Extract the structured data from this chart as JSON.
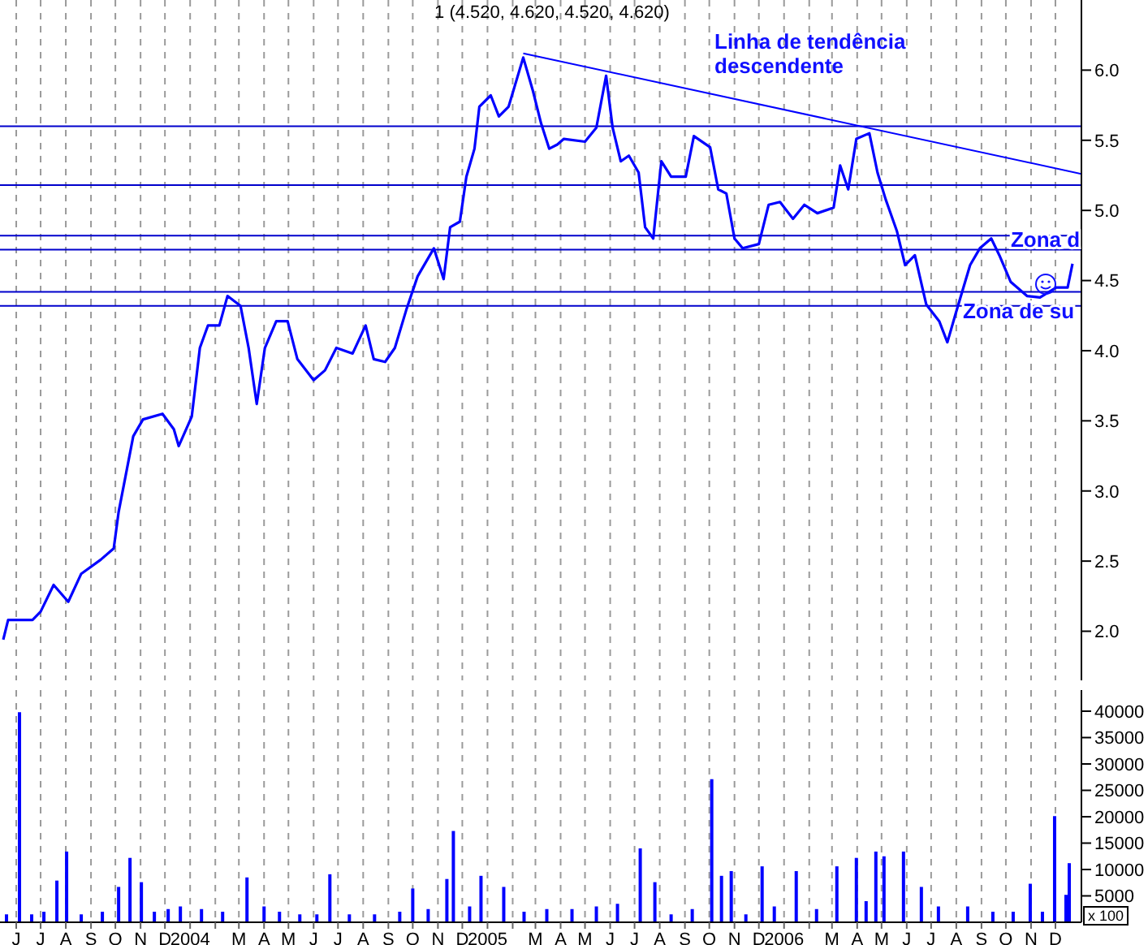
{
  "chart_data": [
    {
      "type": "line",
      "title": "1 (4.520, 4.620, 4.520, 4.620)",
      "x": [
        "2003-05-16",
        "2003-05-22",
        "2003-06-21",
        "2003-07-01",
        "2003-07-17",
        "2003-08-04",
        "2003-08-20",
        "2003-09-13",
        "2003-09-29",
        "2003-10-05",
        "2003-10-15",
        "2003-10-23",
        "2003-11-04",
        "2003-11-28",
        "2003-12-12",
        "2003-12-18",
        "2004-01-03",
        "2004-01-13",
        "2004-01-23",
        "2004-02-06",
        "2004-02-16",
        "2004-03-03",
        "2004-03-13",
        "2004-03-23",
        "2004-04-02",
        "2004-04-16",
        "2004-04-30",
        "2004-05-12",
        "2004-06-01",
        "2004-06-15",
        "2004-06-29",
        "2004-07-19",
        "2004-08-04",
        "2004-08-14",
        "2004-08-28",
        "2004-09-09",
        "2004-09-23",
        "2004-10-07",
        "2004-10-27",
        "2004-11-08",
        "2004-11-16",
        "2004-11-28",
        "2004-12-06",
        "2004-12-16",
        "2004-12-22",
        "2005-01-05",
        "2005-01-15",
        "2005-01-27",
        "2005-02-14",
        "2005-02-26",
        "2005-03-08",
        "2005-03-18",
        "2005-03-28",
        "2005-04-05",
        "2005-05-01",
        "2005-05-15",
        "2005-05-27",
        "2005-06-04",
        "2005-06-14",
        "2005-06-24",
        "2005-07-06",
        "2005-07-14",
        "2005-07-24",
        "2005-08-03",
        "2005-08-15",
        "2005-09-02",
        "2005-09-12",
        "2005-10-02",
        "2005-10-12",
        "2005-10-22",
        "2005-11-01",
        "2005-11-11",
        "2005-12-01",
        "2005-12-13",
        "2005-12-27",
        "2006-01-12",
        "2006-01-26",
        "2006-02-11",
        "2006-03-03",
        "2006-03-11",
        "2006-03-21",
        "2006-03-31",
        "2006-04-16",
        "2006-04-26",
        "2006-05-06",
        "2006-05-20",
        "2006-05-30",
        "2006-06-11",
        "2006-06-25",
        "2006-07-11",
        "2006-07-21",
        "2006-07-31",
        "2006-08-18",
        "2006-08-30",
        "2006-09-13",
        "2006-09-23",
        "2006-10-07",
        "2006-10-27",
        "2006-11-12",
        "2006-12-02",
        "2006-12-16",
        "2006-12-22"
      ],
      "series": [
        {
          "color": "#0000ff",
          "values": [
            1.94,
            2.08,
            2.08,
            2.14,
            2.33,
            2.21,
            2.41,
            2.51,
            2.59,
            2.85,
            3.15,
            3.39,
            3.51,
            3.55,
            3.44,
            3.32,
            3.53,
            4.02,
            4.18,
            4.18,
            4.39,
            4.32,
            4.02,
            3.62,
            4.02,
            4.21,
            4.21,
            3.94,
            3.79,
            3.86,
            4.02,
            3.98,
            4.18,
            3.94,
            3.92,
            4.02,
            4.29,
            4.53,
            4.73,
            4.51,
            4.88,
            4.92,
            5.24,
            5.44,
            5.74,
            5.82,
            5.67,
            5.74,
            6.09,
            5.85,
            5.62,
            5.44,
            5.47,
            5.51,
            5.49,
            5.59,
            5.96,
            5.59,
            5.35,
            5.39,
            5.27,
            4.88,
            4.8,
            5.35,
            5.24,
            5.24,
            5.53,
            5.45,
            5.15,
            5.12,
            4.8,
            4.73,
            4.76,
            5.04,
            5.06,
            4.94,
            5.04,
            4.98,
            5.02,
            5.32,
            5.15,
            5.51,
            5.55,
            5.27,
            5.08,
            4.85,
            4.61,
            4.68,
            4.33,
            4.21,
            4.06,
            4.26,
            4.61,
            4.73,
            4.8,
            4.68,
            4.49,
            4.39,
            4.38,
            4.45,
            4.45,
            4.62
          ]
        },
        {
          "type": "line",
          "color": "#0000ff",
          "x": [
            "2005-02-14",
            "2007-01-02"
          ],
          "values": [
            6.12,
            5.26
          ]
        }
      ],
      "xlim": [
        "2003-05-12",
        "2007-01-02"
      ],
      "xticks": [
        "2003-06-01",
        "2003-07-01",
        "2003-08-01",
        "2003-09-01",
        "2003-10-01",
        "2003-11-01",
        "2003-12-01",
        "2004-01-01",
        "2004-02-01",
        "2004-03-01",
        "2004-04-01",
        "2004-05-01",
        "2004-06-01",
        "2004-07-01",
        "2004-08-01",
        "2004-09-01",
        "2004-10-01",
        "2004-11-01",
        "2004-12-01",
        "2005-01-01",
        "2005-02-01",
        "2005-03-01",
        "2005-04-01",
        "2005-05-01",
        "2005-06-01",
        "2005-07-01",
        "2005-08-01",
        "2005-09-01",
        "2005-10-01",
        "2005-11-01",
        "2005-12-01",
        "2006-01-01",
        "2006-02-01",
        "2006-03-01",
        "2006-04-01",
        "2006-05-01",
        "2006-06-01",
        "2006-07-01",
        "2006-08-01",
        "2006-09-01",
        "2006-10-01",
        "2006-11-01",
        "2006-12-01"
      ],
      "ylim": [
        1.65,
        6.5
      ],
      "yticks": [
        {
          "value": 2,
          "label": "2.0"
        },
        {
          "value": 2.5,
          "label": "2.5"
        },
        {
          "value": 3,
          "label": "3.0"
        },
        {
          "value": 3.5,
          "label": "3.5"
        },
        {
          "value": 4,
          "label": "4.0"
        },
        {
          "value": 4.5,
          "label": "4.5"
        },
        {
          "value": 5,
          "label": "5.0"
        },
        {
          "value": 5.5,
          "label": "5.5"
        },
        {
          "value": 6,
          "label": "6.0"
        }
      ],
      "ref_lines": [
        {
          "axis": "y",
          "value": 5.6,
          "color": "#0000cc"
        },
        {
          "axis": "y",
          "value": 5.18,
          "color": "#0000cc"
        },
        {
          "axis": "y",
          "value": 4.82,
          "color": "#0000cc"
        },
        {
          "axis": "y",
          "value": 4.72,
          "color": "#0000cc"
        },
        {
          "axis": "y",
          "value": 4.42,
          "color": "#0000cc"
        },
        {
          "axis": "y",
          "value": 4.32,
          "color": "#0000cc"
        }
      ],
      "annotations": [
        "Linha de tendência descendente",
        {
          "text": "Zona d",
          "x": "2006-10-07",
          "y": 4.74
        },
        {
          "text": "Zona de su",
          "x": "2006-08-09",
          "y": 4.23
        }
      ],
      "grid": "x",
      "tick_labels": "y"
    },
    {
      "type": "bar",
      "color": "#0000ff",
      "x": [
        "2003-05-20",
        "2003-06-05",
        "2003-06-20",
        "2003-07-05",
        "2003-07-21",
        "2003-08-02",
        "2003-08-20",
        "2003-09-15",
        "2003-10-05",
        "2003-10-19",
        "2003-11-02",
        "2003-11-18",
        "2003-12-05",
        "2003-12-20",
        "2004-01-15",
        "2004-02-10",
        "2004-03-11",
        "2004-04-01",
        "2004-04-20",
        "2004-05-15",
        "2004-06-05",
        "2004-06-21",
        "2004-07-15",
        "2004-08-15",
        "2004-09-15",
        "2004-10-01",
        "2004-10-20",
        "2004-11-12",
        "2004-11-20",
        "2004-12-10",
        "2004-12-24",
        "2005-01-21",
        "2005-02-15",
        "2005-03-15",
        "2005-04-15",
        "2005-05-15",
        "2005-06-10",
        "2005-07-08",
        "2005-07-26",
        "2005-08-15",
        "2005-09-10",
        "2005-10-04",
        "2005-10-16",
        "2005-10-28",
        "2005-11-15",
        "2005-12-05",
        "2005-12-20",
        "2006-01-16",
        "2006-02-10",
        "2006-03-07",
        "2006-03-31",
        "2006-04-12",
        "2006-04-24",
        "2006-05-04",
        "2006-05-28",
        "2006-06-19",
        "2006-07-10",
        "2006-08-15",
        "2006-09-15",
        "2006-10-10",
        "2006-10-31",
        "2006-11-15",
        "2006-11-30",
        "2006-12-14",
        "2006-12-18"
      ],
      "values": [
        1500,
        39800,
        1500,
        2000,
        7900,
        13400,
        1500,
        2000,
        6700,
        12200,
        7600,
        2000,
        2500,
        3000,
        2500,
        2000,
        8500,
        3000,
        2000,
        1500,
        1500,
        9100,
        1500,
        1500,
        2000,
        6400,
        2500,
        8200,
        17300,
        3000,
        8800,
        6700,
        2000,
        2500,
        2500,
        3000,
        3500,
        14000,
        7600,
        1500,
        2500,
        27100,
        8800,
        9700,
        1500,
        10600,
        3000,
        9700,
        2500,
        10600,
        12200,
        4000,
        13400,
        12500,
        13400,
        6700,
        3000,
        3000,
        2000,
        2000,
        7300,
        2000,
        20100,
        5200,
        11200
      ],
      "xlim": [
        "2003-05-12",
        "2007-01-02"
      ],
      "xticks": [
        {
          "value": "2003-06-01",
          "label": "J"
        },
        {
          "value": "2003-07-01",
          "label": "J"
        },
        {
          "value": "2003-08-01",
          "label": "A"
        },
        {
          "value": "2003-09-01",
          "label": "S"
        },
        {
          "value": "2003-10-01",
          "label": "O"
        },
        {
          "value": "2003-11-01",
          "label": "N"
        },
        {
          "value": "2003-12-01",
          "label": "D"
        },
        {
          "value": "2004-01-01",
          "label": "2004"
        },
        {
          "value": "2004-02-01",
          "label": null
        },
        {
          "value": "2004-03-01",
          "label": "M"
        },
        {
          "value": "2004-04-01",
          "label": "A"
        },
        {
          "value": "2004-05-01",
          "label": "M"
        },
        {
          "value": "2004-06-01",
          "label": "J"
        },
        {
          "value": "2004-07-01",
          "label": "J"
        },
        {
          "value": "2004-08-01",
          "label": "A"
        },
        {
          "value": "2004-09-01",
          "label": "S"
        },
        {
          "value": "2004-10-01",
          "label": "O"
        },
        {
          "value": "2004-11-01",
          "label": "N"
        },
        {
          "value": "2004-12-01",
          "label": "D"
        },
        {
          "value": "2005-01-01",
          "label": "2005"
        },
        {
          "value": "2005-02-01",
          "label": null
        },
        {
          "value": "2005-03-01",
          "label": "M"
        },
        {
          "value": "2005-04-01",
          "label": "A"
        },
        {
          "value": "2005-05-01",
          "label": "M"
        },
        {
          "value": "2005-06-01",
          "label": "J"
        },
        {
          "value": "2005-07-01",
          "label": "J"
        },
        {
          "value": "2005-08-01",
          "label": "A"
        },
        {
          "value": "2005-09-01",
          "label": "S"
        },
        {
          "value": "2005-10-01",
          "label": "O"
        },
        {
          "value": "2005-11-01",
          "label": "N"
        },
        {
          "value": "2005-12-01",
          "label": "D"
        },
        {
          "value": "2006-01-01",
          "label": "2006"
        },
        {
          "value": "2006-02-01",
          "label": null
        },
        {
          "value": "2006-03-01",
          "label": "M"
        },
        {
          "value": "2006-04-01",
          "label": "A"
        },
        {
          "value": "2006-05-01",
          "label": "M"
        },
        {
          "value": "2006-06-01",
          "label": "J"
        },
        {
          "value": "2006-07-01",
          "label": "J"
        },
        {
          "value": "2006-08-01",
          "label": "A"
        },
        {
          "value": "2006-09-01",
          "label": "S"
        },
        {
          "value": "2006-10-01",
          "label": "O"
        },
        {
          "value": "2006-11-01",
          "label": "N"
        },
        {
          "value": "2006-12-01",
          "label": "D"
        }
      ],
      "ylim": [
        0,
        44000
      ],
      "yticks": [
        5000,
        10000,
        15000,
        20000,
        25000,
        30000,
        35000,
        40000
      ],
      "annotations": [
        "x 100"
      ],
      "grid": "x"
    }
  ]
}
